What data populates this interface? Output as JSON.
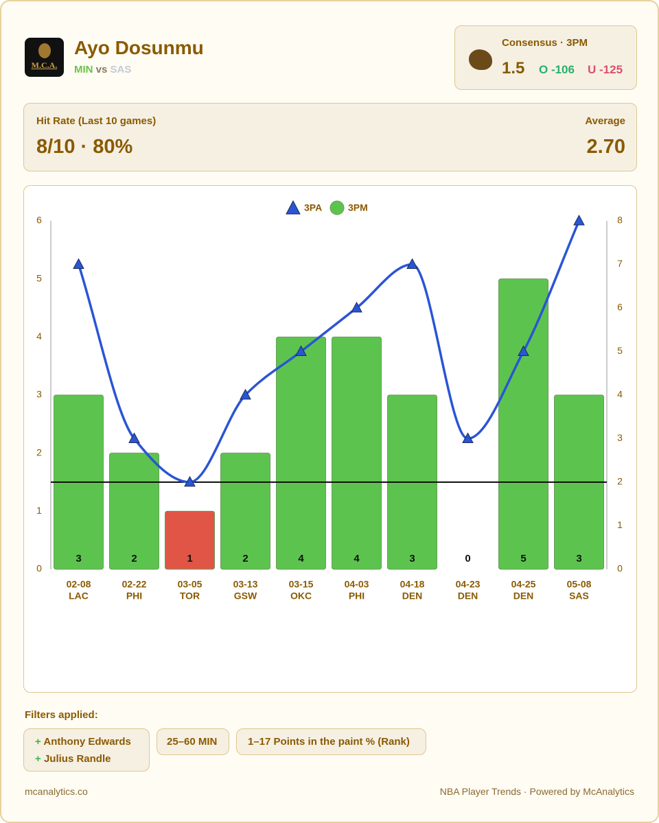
{
  "header": {
    "logo_text": "M.C.A.",
    "player": "Ayo Dosunmu",
    "team": "MIN",
    "vs": "vs",
    "opponent": "SAS"
  },
  "consensus": {
    "title": "Consensus · 3PM",
    "line": 1.5,
    "over": "O -106",
    "under": "U -125"
  },
  "hit_rate": {
    "label": "Hit Rate (Last 10 games)",
    "value": "8/10 · 80%",
    "average_label": "Average",
    "average": "2.70"
  },
  "chart_data": {
    "type": "bar-line",
    "categories": [
      "02-08",
      "02-22",
      "03-05",
      "03-13",
      "03-15",
      "04-03",
      "04-18",
      "04-23",
      "04-25",
      "05-08"
    ],
    "opponents": [
      "LAC",
      "PHI",
      "TOR",
      "GSW",
      "OKC",
      "PHI",
      "DEN",
      "DEN",
      "DEN",
      "SAS"
    ],
    "series": [
      {
        "name": "3PA",
        "type": "line",
        "axis": "y2",
        "color": "#2a55d4",
        "values": [
          7,
          3,
          2,
          4,
          5,
          6,
          7,
          3,
          5,
          8
        ]
      },
      {
        "name": "3PM",
        "type": "bar",
        "color": "#5cc44e",
        "under_color": "#e05545",
        "values": [
          3,
          2,
          1,
          2,
          4,
          4,
          3,
          0,
          5,
          3
        ]
      }
    ],
    "ylim": [
      0,
      6
    ],
    "yticks": [
      0,
      1,
      2,
      3,
      4,
      5,
      6
    ],
    "y2lim": [
      0,
      8
    ],
    "y2ticks": [
      0,
      1,
      2,
      3,
      4,
      5,
      6,
      7,
      8
    ],
    "legend": "top"
  },
  "filters": {
    "title": "Filters applied:",
    "players": [
      "Anthony Edwards",
      "Julius Randle"
    ],
    "minutes": "25–60 MIN",
    "rank": "1–17 Points in the paint % (Rank)"
  },
  "footer": {
    "site": "mcanalytics.co",
    "credit": "NBA Player Trends · Powered by McAnalytics"
  }
}
